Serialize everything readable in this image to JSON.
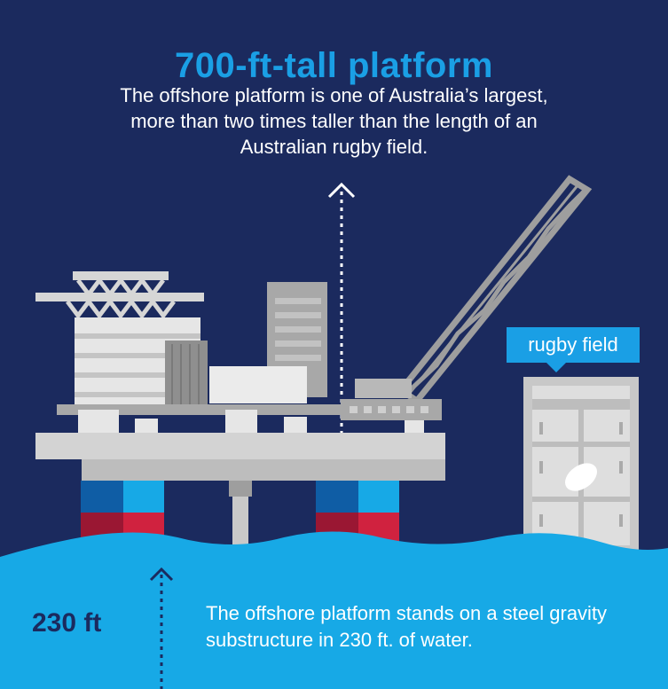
{
  "headline": {
    "title": "700-ft-tall platform",
    "description": "The offshore platform is one of Australia’s largest, more than two times taller than the length of an Australian rugby field."
  },
  "rugby_field": {
    "label": "rugby field"
  },
  "depth": {
    "value": "230 ft",
    "description": "The offshore platform stands on a steel gravity substructure in 230 ft. of water."
  },
  "colors": {
    "background": "#1b2a5e",
    "accent": "#1a9fe5",
    "water": "#17a9e6",
    "platform": "#c9c9c9",
    "leg_red": "#d0223f",
    "leg_blue": "#0f5da5"
  },
  "icons": [
    "up-arrow-icon",
    "rugby-ball-icon"
  ]
}
